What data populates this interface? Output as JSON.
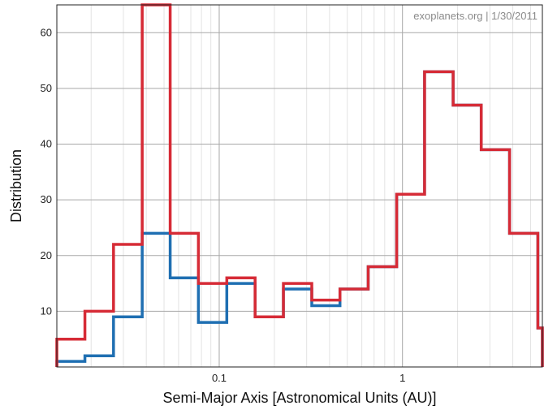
{
  "chart_data": {
    "type": "line",
    "title": "",
    "xlabel": "Semi-Major Axis [Astronomical Units (AU)]",
    "ylabel": "Distribution",
    "annotation": "exoplanets.org | 1/30/2011",
    "x_scale": "log",
    "xlim": [
      0.013,
      5.8
    ],
    "ylim": [
      0,
      65
    ],
    "grid": true,
    "x_ticks": [
      {
        "value": 0.1,
        "label": "0.1"
      },
      {
        "value": 1,
        "label": "1"
      }
    ],
    "y_ticks": [
      {
        "value": 10,
        "label": "10"
      },
      {
        "value": 20,
        "label": "20"
      },
      {
        "value": 30,
        "label": "30"
      },
      {
        "value": 40,
        "label": "40"
      },
      {
        "value": 50,
        "label": "50"
      },
      {
        "value": 60,
        "label": "60"
      }
    ],
    "bin_edges": [
      0.013,
      0.0185,
      0.0265,
      0.038,
      0.054,
      0.077,
      0.11,
      0.157,
      0.224,
      0.32,
      0.456,
      0.65,
      0.93,
      1.32,
      1.89,
      2.69,
      3.84,
      5.48,
      5.8
    ],
    "series": [
      {
        "color": "#1f6fb2",
        "values": [
          1,
          2,
          9,
          24,
          16,
          8,
          15,
          9,
          14,
          11,
          14,
          18,
          31,
          53,
          47,
          39,
          24,
          7
        ]
      },
      {
        "color": "#d62b36",
        "values": [
          5,
          10,
          22,
          65,
          24,
          15,
          16,
          9,
          15,
          12,
          14,
          18,
          31,
          53,
          47,
          39,
          24,
          7
        ]
      }
    ]
  }
}
